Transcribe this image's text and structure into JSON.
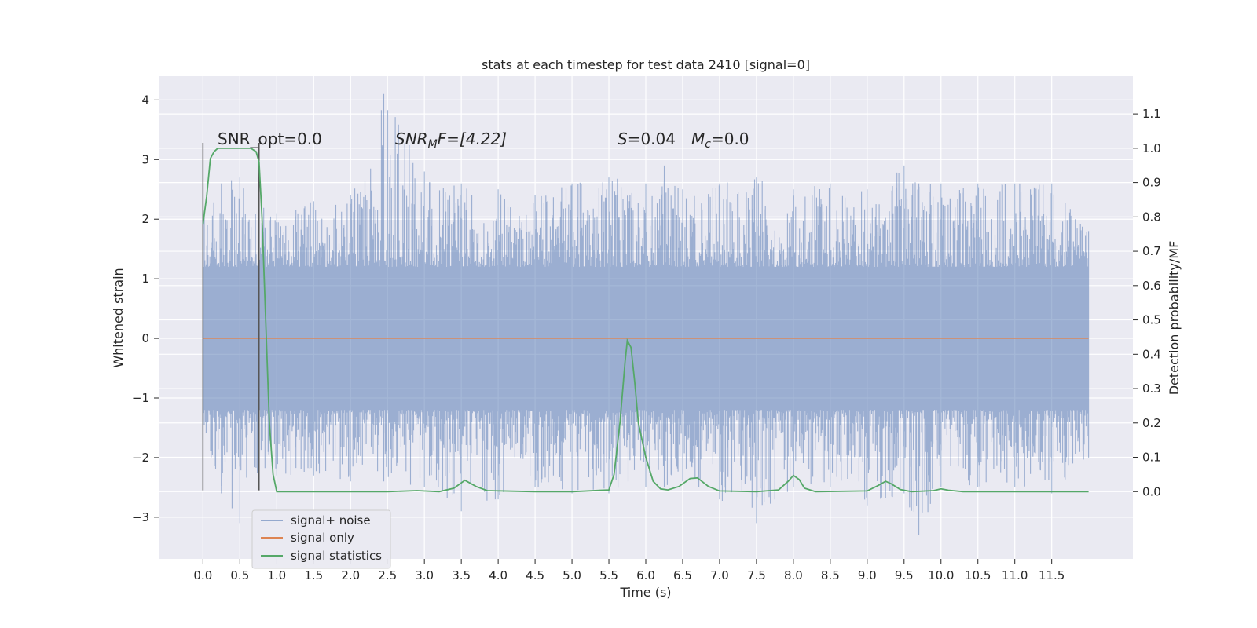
{
  "chart_data": {
    "type": "line",
    "title": "stats at each timestep for test data 2410 [signal=0]",
    "xlabel": "Time (s)",
    "ylabel_left": "Whitened strain",
    "ylabel_right": "Detection probability/MF",
    "xlim": [
      -0.6,
      12.6
    ],
    "ylim_left": [
      -3.7,
      4.4
    ],
    "ylim_right": [
      -0.196,
      1.21
    ],
    "grid": true,
    "x_ticks": [
      0.0,
      0.5,
      1.0,
      1.5,
      2.0,
      2.5,
      3.0,
      3.5,
      4.0,
      4.5,
      5.0,
      5.5,
      6.0,
      6.5,
      7.0,
      7.5,
      8.0,
      8.5,
      9.0,
      9.5,
      10.0,
      10.5,
      11.0,
      11.5
    ],
    "x_tick_labels": [
      "0.0",
      "0.5",
      "1.0",
      "1.5",
      "2.0",
      "2.5",
      "3.0",
      "3.5",
      "4.0",
      "4.5",
      "5.0",
      "5.5",
      "6.0",
      "6.5",
      "7.0",
      "7.5",
      "8.0",
      "8.5",
      "9.0",
      "9.5",
      "10.0",
      "10.5",
      "11.0",
      "11.5"
    ],
    "y_left_ticks": [
      -3,
      -2,
      -1,
      0,
      1,
      2,
      3,
      4
    ],
    "y_left_tick_labels": [
      "−3",
      "−2",
      "−1",
      "0",
      "1",
      "2",
      "3",
      "4"
    ],
    "y_right_ticks": [
      0.0,
      0.1,
      0.2,
      0.3,
      0.4,
      0.5,
      0.6,
      0.7,
      0.8,
      0.9,
      1.0,
      1.1
    ],
    "y_right_tick_labels": [
      "0.0",
      "0.1",
      "0.2",
      "0.3",
      "0.4",
      "0.5",
      "0.6",
      "0.7",
      "0.8",
      "0.9",
      "1.0",
      "1.1"
    ],
    "annotations": {
      "snr_opt": "SNR_opt=0.0",
      "snr_mf": "SNR",
      "snr_mf_sub": "M",
      "snr_mf_rest": "F=[4.22]",
      "s_label": "S",
      "s_value": "=0.04",
      "mc_label": "M",
      "mc_sub": "c",
      "mc_value": "=0.0"
    },
    "vlines_x": [
      0.0,
      0.76
    ],
    "vlines_y_range": [
      -2.55,
      3.28
    ],
    "legend_position": "lower-left",
    "series": [
      {
        "name": "signal+ noise",
        "axis": "left",
        "color": "#4c72b0",
        "x_range": [
          0.0,
          12.0
        ],
        "envelope": {
          "x": [
            0.0,
            0.25,
            0.5,
            0.75,
            1.0,
            1.5,
            2.0,
            2.45,
            3.0,
            3.5,
            4.0,
            4.5,
            5.0,
            5.5,
            6.0,
            6.25,
            6.5,
            7.0,
            7.5,
            8.0,
            8.5,
            9.0,
            9.5,
            9.7,
            10.0,
            10.5,
            11.0,
            11.5,
            12.0
          ],
          "max": [
            2.1,
            2.6,
            2.7,
            2.4,
            2.1,
            2.3,
            2.4,
            4.1,
            2.8,
            2.6,
            2.5,
            2.4,
            2.6,
            2.7,
            2.6,
            2.9,
            2.5,
            2.6,
            2.7,
            2.5,
            2.6,
            2.5,
            2.9,
            2.6,
            2.6,
            2.6,
            2.6,
            2.6,
            1.8
          ],
          "min": [
            -1.7,
            -2.6,
            -3.1,
            -2.5,
            -2.3,
            -2.3,
            -2.4,
            -2.4,
            -2.5,
            -2.9,
            -2.7,
            -2.5,
            -2.6,
            -2.6,
            -2.5,
            -2.5,
            -2.4,
            -2.7,
            -3.1,
            -2.5,
            -2.5,
            -2.8,
            -2.6,
            -3.3,
            -2.5,
            -2.5,
            -2.5,
            -2.6,
            -2.0
          ]
        }
      },
      {
        "name": "signal only",
        "axis": "left",
        "color": "#dd8452",
        "x": [
          0.0,
          12.0
        ],
        "values": [
          0.0,
          0.0
        ]
      },
      {
        "name": "signal statistics",
        "axis": "right",
        "color": "#55a868",
        "x": [
          0.0,
          0.05,
          0.1,
          0.15,
          0.2,
          0.3,
          0.5,
          0.65,
          0.72,
          0.76,
          0.8,
          0.85,
          0.9,
          0.95,
          1.0,
          1.5,
          2.0,
          2.5,
          2.9,
          3.2,
          3.4,
          3.55,
          3.7,
          3.85,
          4.5,
          5.0,
          5.5,
          5.57,
          5.65,
          5.72,
          5.75,
          5.8,
          5.85,
          5.9,
          6.0,
          6.1,
          6.2,
          6.3,
          6.45,
          6.6,
          6.7,
          6.85,
          7.0,
          7.5,
          7.8,
          7.93,
          8.0,
          8.08,
          8.15,
          8.3,
          9.0,
          9.15,
          9.25,
          9.33,
          9.45,
          9.6,
          9.9,
          10.0,
          10.1,
          10.3,
          11.0,
          12.0
        ],
        "values": [
          0.78,
          0.86,
          0.97,
          0.99,
          1.0,
          1.0,
          1.0,
          1.0,
          0.99,
          0.96,
          0.8,
          0.5,
          0.2,
          0.05,
          0.0,
          0.0,
          0.0,
          0.0,
          0.003,
          0.0,
          0.01,
          0.033,
          0.015,
          0.003,
          0.0,
          0.0,
          0.005,
          0.05,
          0.2,
          0.38,
          0.44,
          0.42,
          0.32,
          0.2,
          0.1,
          0.03,
          0.008,
          0.005,
          0.015,
          0.038,
          0.04,
          0.015,
          0.002,
          0.0,
          0.005,
          0.03,
          0.047,
          0.035,
          0.01,
          0.0,
          0.002,
          0.018,
          0.03,
          0.022,
          0.006,
          0.0,
          0.003,
          0.008,
          0.004,
          0.0,
          0.0,
          0.0
        ]
      }
    ]
  }
}
